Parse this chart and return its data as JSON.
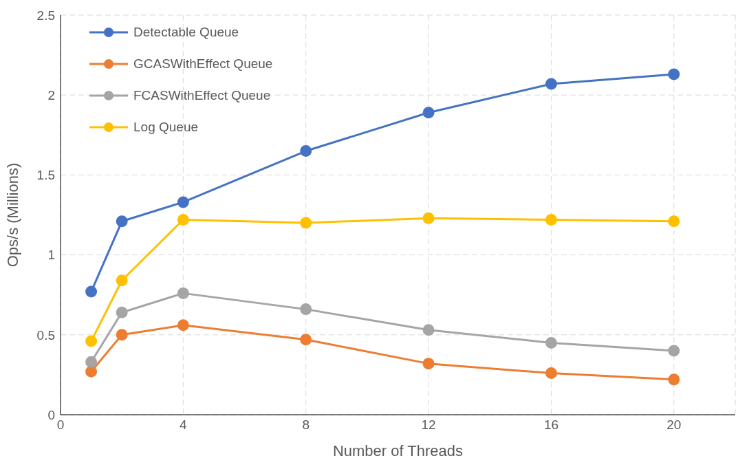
{
  "chart_data": {
    "type": "line",
    "xlabel": "Number of Threads",
    "ylabel": "Ops/s (Millions)",
    "x": [
      1,
      2,
      4,
      8,
      12,
      16,
      20
    ],
    "series": [
      {
        "name": "Detectable Queue",
        "color": "#4472c4",
        "values": [
          0.77,
          1.21,
          1.33,
          1.65,
          1.89,
          2.07,
          2.13
        ]
      },
      {
        "name": "GCASWithEffect Queue",
        "color": "#ed7d31",
        "values": [
          0.27,
          0.5,
          0.56,
          0.47,
          0.32,
          0.26,
          0.22
        ]
      },
      {
        "name": "FCASWithEffect Queue",
        "color": "#a5a5a5",
        "values": [
          0.33,
          0.64,
          0.76,
          0.66,
          0.53,
          0.45,
          0.4
        ]
      },
      {
        "name": "Log Queue",
        "color": "#ffc000",
        "values": [
          0.46,
          0.84,
          1.22,
          1.2,
          1.23,
          1.22,
          1.21
        ]
      }
    ],
    "xlim": [
      0,
      22
    ],
    "xticks": [
      0,
      4,
      8,
      12,
      16,
      20
    ],
    "ylim": [
      0,
      2.5
    ],
    "yticks": [
      0,
      0.5,
      1,
      1.5,
      2,
      2.5
    ],
    "grid": true,
    "legend": "top left",
    "marker": "circle",
    "line_style": "solid"
  }
}
